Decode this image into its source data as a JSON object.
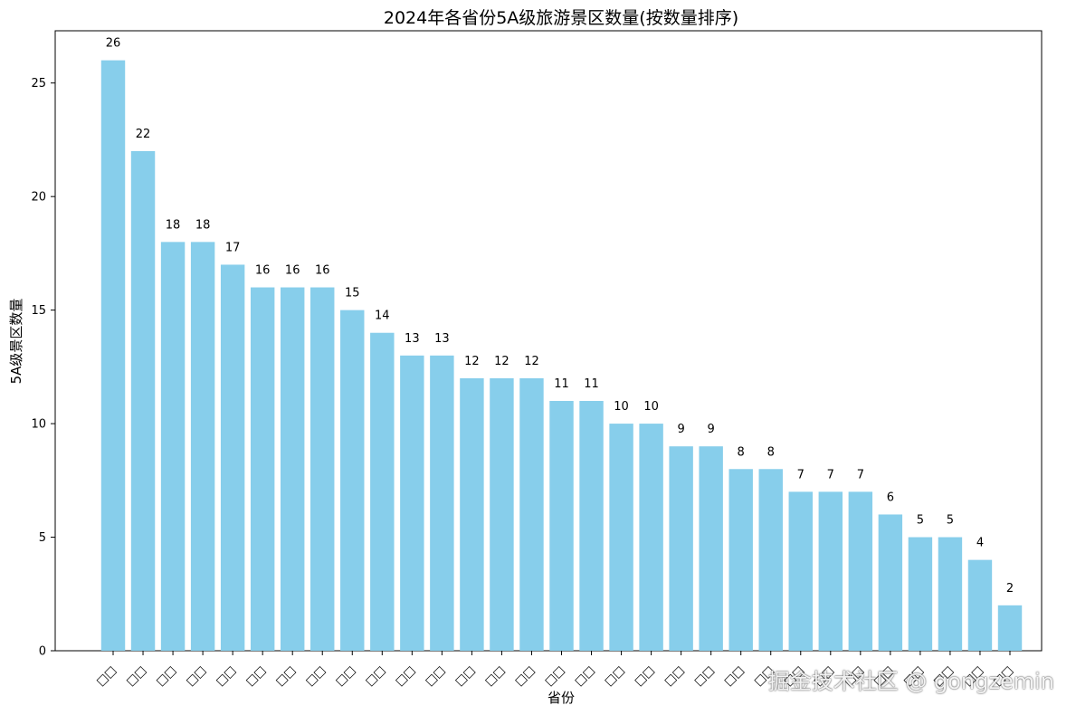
{
  "chart_data": {
    "type": "bar",
    "title": "2024年各省份5A级旅游景区数量(按数量排序)",
    "xlabel": "省份",
    "ylabel": "5A级景区数量",
    "ylim": [
      0,
      27.3
    ],
    "yticks": [
      0,
      5,
      10,
      15,
      20,
      25
    ],
    "categories": [
      "□□",
      "□□",
      "□□",
      "□□",
      "□□",
      "□□",
      "□□",
      "□□",
      "□□",
      "□□",
      "□□",
      "□□",
      "□□",
      "□□",
      "□□",
      "□□",
      "□□",
      "□□",
      "□□",
      "□□",
      "□□",
      "□□",
      "□□",
      "□□",
      "□□",
      "□□",
      "□□",
      "□□",
      "□□",
      "□□",
      "□□"
    ],
    "values": [
      26,
      22,
      18,
      18,
      17,
      16,
      16,
      16,
      15,
      14,
      13,
      13,
      12,
      12,
      12,
      11,
      11,
      10,
      10,
      9,
      9,
      8,
      8,
      7,
      7,
      7,
      6,
      5,
      5,
      4,
      2
    ],
    "bar_color": "#87ceeb",
    "grid": false,
    "data_labels": true
  },
  "watermark": "掘金技术社区 @ gongzemin"
}
